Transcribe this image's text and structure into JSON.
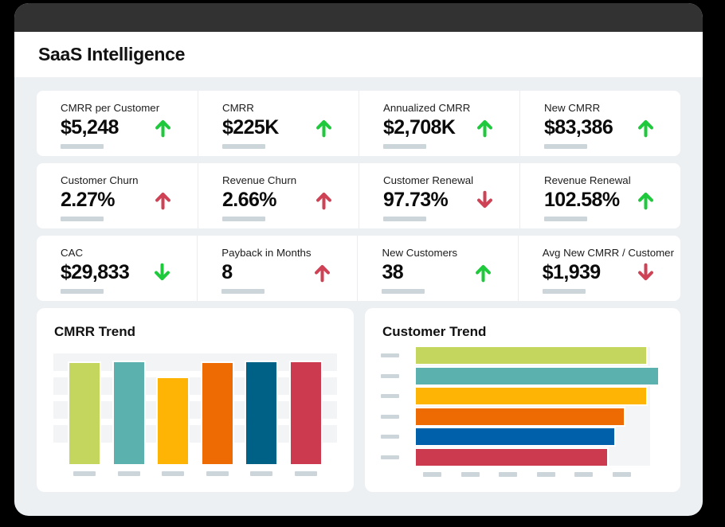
{
  "app": {
    "title": "SaaS Intelligence"
  },
  "colors": {
    "titlebar": "#323232",
    "window_bg": "#edf0f3",
    "card_bg": "#ffffff",
    "green": "#1ec93c",
    "red": "#cf4255",
    "placeholder": "#ccd5da"
  },
  "kpi_rows": [
    [
      {
        "label": "CMRR per Customer",
        "value": "$5,248",
        "trend": "up",
        "trend_color": "#1ec93c"
      },
      {
        "label": "CMRR",
        "value": "$225K",
        "trend": "up",
        "trend_color": "#1ec93c"
      },
      {
        "label": "Annualized CMRR",
        "value": "$2,708K",
        "trend": "up",
        "trend_color": "#1ec93c"
      },
      {
        "label": "New CMRR",
        "value": "$83,386",
        "trend": "up",
        "trend_color": "#1ec93c"
      }
    ],
    [
      {
        "label": "Customer Churn",
        "value": "2.27%",
        "trend": "up",
        "trend_color": "#cf4255"
      },
      {
        "label": "Revenue Churn",
        "value": "2.66%",
        "trend": "up",
        "trend_color": "#cf4255"
      },
      {
        "label": "Customer Renewal",
        "value": "97.73%",
        "trend": "down",
        "trend_color": "#cf4255"
      },
      {
        "label": "Revenue Renewal",
        "value": "102.58%",
        "trend": "up",
        "trend_color": "#1ec93c"
      }
    ],
    [
      {
        "label": "CAC",
        "value": "$29,833",
        "trend": "down",
        "trend_color": "#1ec93c"
      },
      {
        "label": "Payback in Months",
        "value": "8",
        "trend": "up",
        "trend_color": "#cf4255"
      },
      {
        "label": "New Customers",
        "value": "38",
        "trend": "up",
        "trend_color": "#1ec93c"
      },
      {
        "label": "Avg New CMRR / Customer",
        "value": "$1,939",
        "trend": "down",
        "trend_color": "#cf4255"
      }
    ]
  ],
  "chart_data": [
    {
      "type": "bar",
      "title": "CMRR Trend",
      "orientation": "vertical",
      "categories": [
        "",
        "",
        "",
        "",
        "",
        ""
      ],
      "values_pct_of_max": [
        99,
        100,
        84,
        99,
        100,
        100
      ],
      "colors": [
        "#c5d65e",
        "#5bb1ad",
        "#fdb404",
        "#ee6a03",
        "#006186",
        "#cc3a50"
      ],
      "xlabel": "",
      "ylabel": "",
      "axis_labels": "redacted placeholder bars",
      "grid": "horizontal gray bands",
      "legend": "none"
    },
    {
      "type": "bar",
      "title": "Customer Trend",
      "orientation": "horizontal",
      "categories": [
        "",
        "",
        "",
        "",
        "",
        ""
      ],
      "values_pct_of_max": [
        95,
        100,
        95,
        86,
        82,
        79
      ],
      "colors": [
        "#c5d65e",
        "#5bb1ad",
        "#fdb404",
        "#ee6a03",
        "#0060a9",
        "#cc3a50"
      ],
      "xlabel": "",
      "ylabel": "",
      "axis_labels": "redacted placeholder bars",
      "grid": "solid light-gray plot background",
      "legend": "none"
    }
  ]
}
